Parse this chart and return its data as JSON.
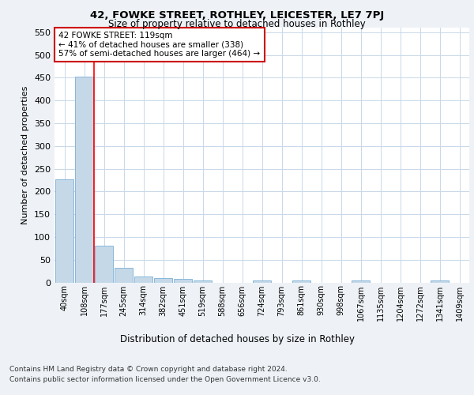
{
  "title_line1": "42, FOWKE STREET, ROTHLEY, LEICESTER, LE7 7PJ",
  "title_line2": "Size of property relative to detached houses in Rothley",
  "xlabel": "Distribution of detached houses by size in Rothley",
  "ylabel": "Number of detached properties",
  "categories": [
    "40sqm",
    "108sqm",
    "177sqm",
    "245sqm",
    "314sqm",
    "382sqm",
    "451sqm",
    "519sqm",
    "588sqm",
    "656sqm",
    "724sqm",
    "793sqm",
    "861sqm",
    "930sqm",
    "998sqm",
    "1067sqm",
    "1135sqm",
    "1204sqm",
    "1272sqm",
    "1341sqm",
    "1409sqm"
  ],
  "values": [
    226,
    453,
    80,
    32,
    13,
    10,
    7,
    5,
    0,
    0,
    5,
    0,
    5,
    0,
    0,
    4,
    0,
    0,
    0,
    4,
    0
  ],
  "bar_color": "#c5d8e8",
  "bar_edgecolor": "#7bafd4",
  "annotation_text": "42 FOWKE STREET: 119sqm\n← 41% of detached houses are smaller (338)\n57% of semi-detached houses are larger (464) →",
  "annotation_box_color": "#ffffff",
  "annotation_box_edgecolor": "#cc0000",
  "ylim": [
    0,
    560
  ],
  "yticks": [
    0,
    50,
    100,
    150,
    200,
    250,
    300,
    350,
    400,
    450,
    500,
    550
  ],
  "footer_line1": "Contains HM Land Registry data © Crown copyright and database right 2024.",
  "footer_line2": "Contains public sector information licensed under the Open Government Licence v3.0.",
  "bg_color": "#eef2f7",
  "plot_bg_color": "#ffffff",
  "grid_color": "#c8d8e8"
}
